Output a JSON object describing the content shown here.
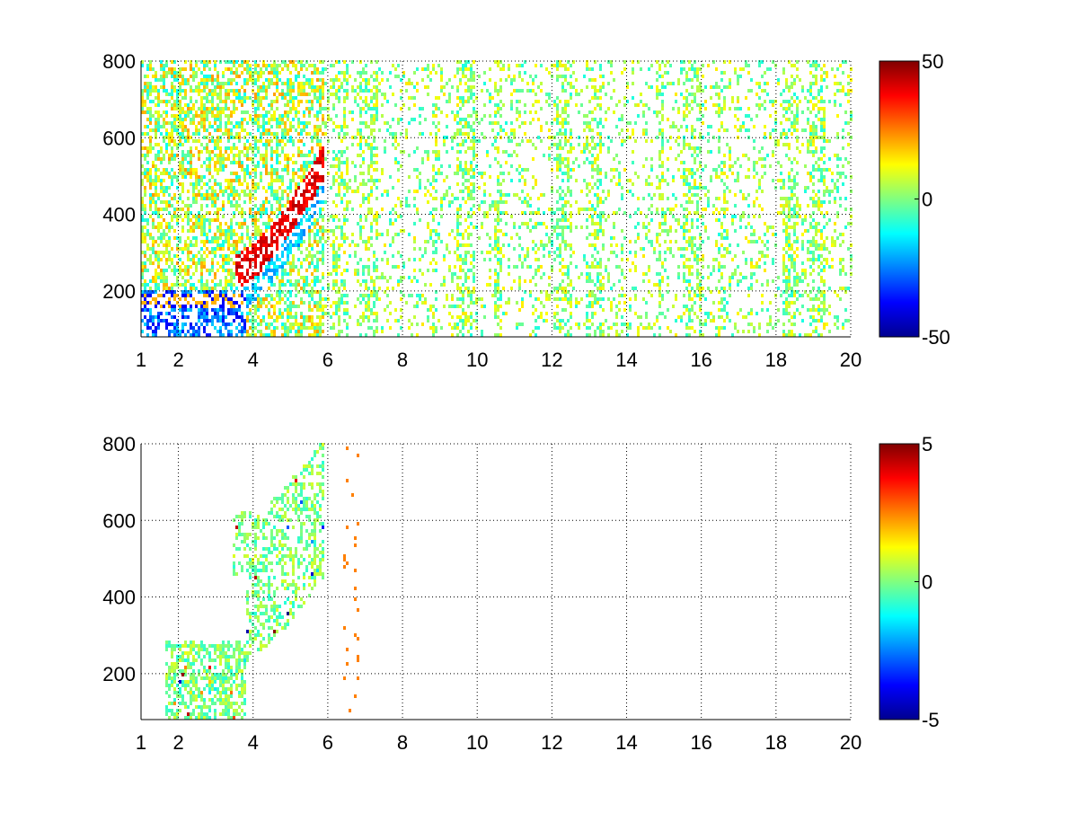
{
  "chart_data": [
    {
      "type": "heatmap",
      "xlim": [
        1,
        20
      ],
      "ylim": [
        80,
        800
      ],
      "xticks": [
        1,
        2,
        4,
        6,
        8,
        10,
        12,
        14,
        16,
        18,
        20
      ],
      "xtick_labels": [
        "1",
        "2",
        "4",
        "6",
        "8",
        "10",
        "12",
        "14",
        "16",
        "18",
        "20"
      ],
      "yticks": [
        200,
        400,
        600,
        800
      ],
      "ytick_labels": [
        "200",
        "400",
        "600",
        "800"
      ],
      "grid": true,
      "colormap": "jet",
      "clim": [
        -50,
        50
      ],
      "colorbar_ticks": [
        50,
        0,
        -50
      ],
      "colorbar_tick_labels": [
        "50",
        "0",
        "-50"
      ]
    },
    {
      "type": "heatmap",
      "xlim": [
        1,
        20
      ],
      "ylim": [
        80,
        800
      ],
      "xticks": [
        1,
        2,
        4,
        6,
        8,
        10,
        12,
        14,
        16,
        18,
        20
      ],
      "xtick_labels": [
        "1",
        "2",
        "4",
        "6",
        "8",
        "10",
        "12",
        "14",
        "16",
        "18",
        "20"
      ],
      "yticks": [
        200,
        400,
        600,
        800
      ],
      "ytick_labels": [
        "200",
        "400",
        "600",
        "800"
      ],
      "grid": true,
      "colormap": "jet",
      "clim": [
        -5,
        5
      ],
      "colorbar_ticks": [
        5,
        0,
        -5
      ],
      "colorbar_tick_labels": [
        "5",
        "0",
        "-5"
      ]
    }
  ]
}
